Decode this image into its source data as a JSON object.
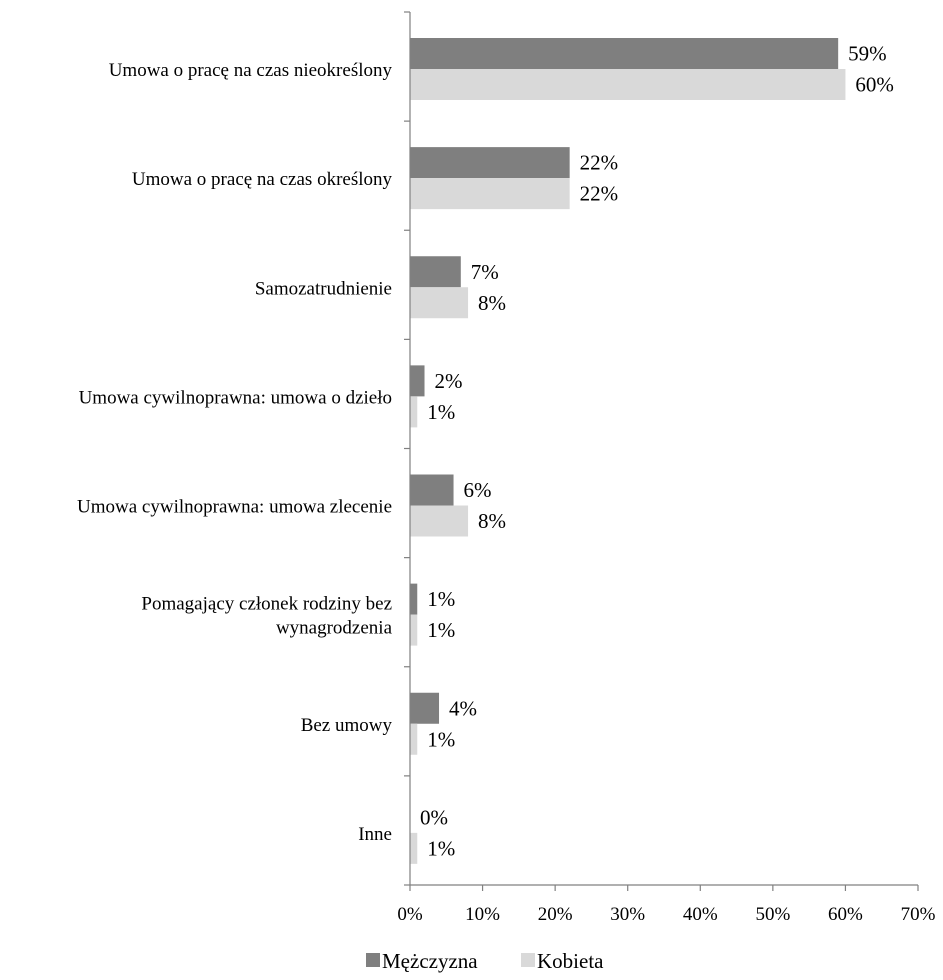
{
  "chart_data": {
    "type": "bar",
    "orientation": "horizontal",
    "categories": [
      [
        "Umowa o pracę na czas nieokreślony"
      ],
      [
        "Umowa o pracę na czas określony"
      ],
      [
        "Samozatrudnienie"
      ],
      [
        "Umowa cywilnoprawna: umowa o dzieło"
      ],
      [
        "Umowa cywilnoprawna: umowa zlecenie"
      ],
      [
        "Pomagający członek rodziny bez",
        "wynagrodzenia"
      ],
      [
        "Bez umowy"
      ],
      [
        "Inne"
      ]
    ],
    "series": [
      {
        "name": "Mężczyzna",
        "color": "#7f7f7f",
        "values": [
          59,
          22,
          7,
          2,
          6,
          1,
          4,
          0
        ],
        "labels": [
          "59%",
          "22%",
          "7%",
          "2%",
          "6%",
          "1%",
          "4%",
          "0%"
        ]
      },
      {
        "name": "Kobieta",
        "color": "#d9d9d9",
        "values": [
          60,
          22,
          8,
          1,
          8,
          1,
          1,
          1
        ],
        "labels": [
          "60%",
          "22%",
          "8%",
          "1%",
          "8%",
          "1%",
          "1%",
          "1%"
        ]
      }
    ],
    "xlim": [
      0,
      70
    ],
    "xticks": [
      0,
      10,
      20,
      30,
      40,
      50,
      60,
      70
    ],
    "xtick_labels": [
      "0%",
      "10%",
      "20%",
      "30%",
      "40%",
      "50%",
      "60%",
      "70%"
    ],
    "grid": false,
    "legend_position": "bottom-center"
  }
}
